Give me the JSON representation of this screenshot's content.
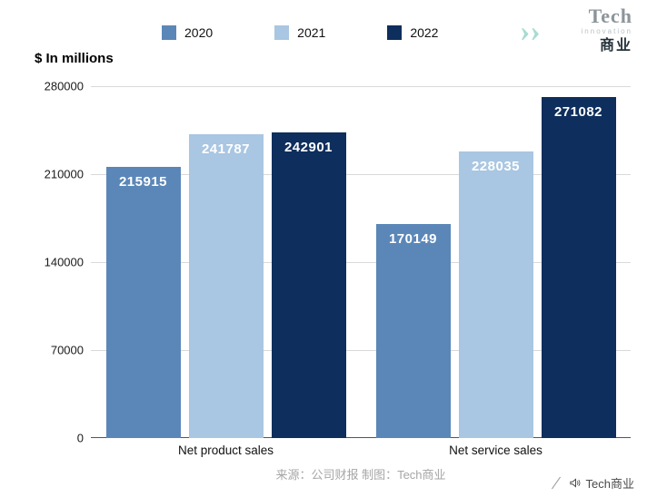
{
  "header": {
    "y_axis_title": "$ In millions",
    "logo": {
      "chevron": "›",
      "brand": "Tech",
      "sub": "innovation",
      "cn": "商业"
    }
  },
  "chart_data": {
    "type": "bar",
    "title": "$ In millions",
    "categories": [
      "Net product sales",
      "Net service sales"
    ],
    "series": [
      {
        "name": "2020",
        "color": "#5b87b8",
        "values": [
          215915,
          170149
        ]
      },
      {
        "name": "2021",
        "color": "#a9c6e2",
        "values": [
          241787,
          228035
        ]
      },
      {
        "name": "2022",
        "color": "#0e2e5d",
        "values": [
          242901,
          271082
        ]
      }
    ],
    "ylim": [
      0,
      280000
    ],
    "yticks": [
      0,
      70000,
      140000,
      210000,
      280000
    ],
    "grid": "horizontal",
    "legend_position": "top",
    "xlabel": "",
    "ylabel": "$ In millions"
  },
  "footer": {
    "source": "来源：公司财报 制图：Tech商业",
    "watermark": "Tech商业"
  }
}
